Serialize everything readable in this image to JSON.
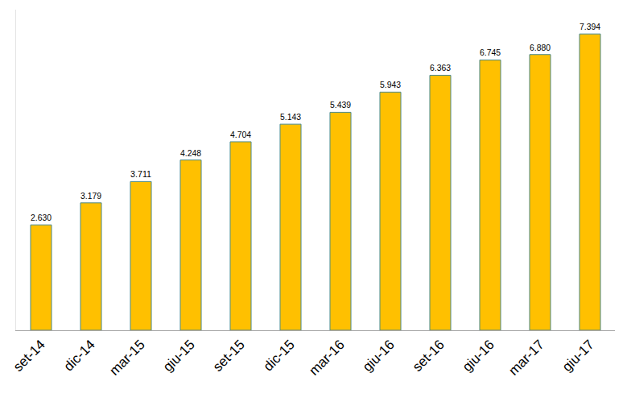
{
  "chart_data": {
    "type": "bar",
    "categories": [
      "set-14",
      "dic-14",
      "mar-15",
      "giu-15",
      "set-15",
      "dic-15",
      "mar-16",
      "giu-16",
      "set-16",
      "giu-16",
      "mar-17",
      "giu-17"
    ],
    "values": [
      2630,
      3179,
      3711,
      4248,
      4704,
      5143,
      5439,
      5943,
      6363,
      6745,
      6880,
      7394
    ],
    "value_labels": [
      "2.630",
      "3.179",
      "3.711",
      "4.248",
      "4.704",
      "5.143",
      "5.439",
      "5.943",
      "6.363",
      "6.745",
      "6.880",
      "7.394"
    ],
    "color": "#ffc000",
    "ylim": [
      0,
      8000
    ],
    "grid": false,
    "data_labels": true,
    "tick_labels": "x"
  }
}
